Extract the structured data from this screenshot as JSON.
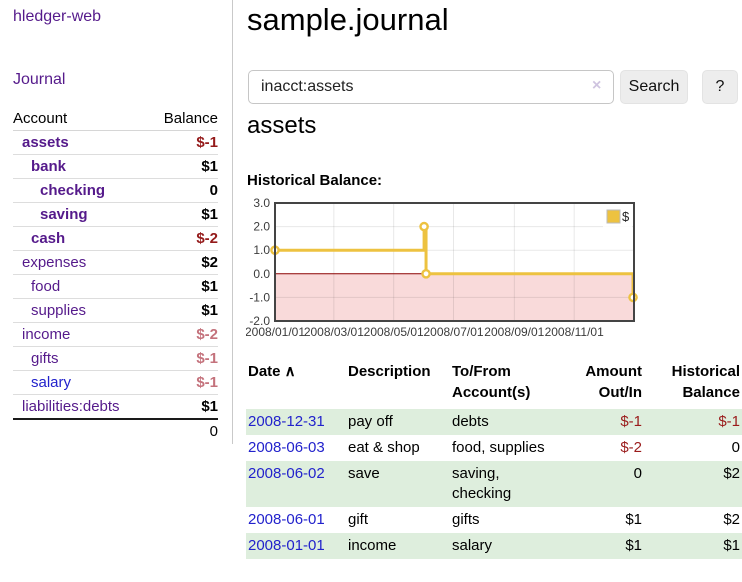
{
  "app": {
    "brand": "hledger-web"
  },
  "sidebar": {
    "nav": {
      "journal_label": "Journal"
    },
    "accounts_table": {
      "headers": {
        "account": "Account",
        "balance": "Balance"
      },
      "rows": [
        {
          "name": "assets",
          "depth": 1,
          "bold": true,
          "link_color": "purple",
          "balance": "$-1",
          "balance_style": "negative"
        },
        {
          "name": "bank",
          "depth": 2,
          "bold": true,
          "link_color": "purple",
          "balance": "$1",
          "balance_style": "normal"
        },
        {
          "name": "checking",
          "depth": 3,
          "bold": true,
          "link_color": "purple",
          "balance": "0",
          "balance_style": "normal"
        },
        {
          "name": "saving",
          "depth": 3,
          "bold": true,
          "link_color": "purple",
          "balance": "$1",
          "balance_style": "normal"
        },
        {
          "name": "cash",
          "depth": 2,
          "bold": true,
          "link_color": "purple",
          "balance": "$-2",
          "balance_style": "negative"
        },
        {
          "name": "expenses",
          "depth": 1,
          "bold": false,
          "link_color": "purple",
          "balance": "$2",
          "balance_style": "normal"
        },
        {
          "name": "food",
          "depth": 2,
          "bold": false,
          "link_color": "purple",
          "balance": "$1",
          "balance_style": "normal"
        },
        {
          "name": "supplies",
          "depth": 2,
          "bold": false,
          "link_color": "purple",
          "balance": "$1",
          "balance_style": "normal"
        },
        {
          "name": "income",
          "depth": 1,
          "bold": false,
          "link_color": "purple",
          "balance": "$-2",
          "balance_style": "negative-muted"
        },
        {
          "name": "gifts",
          "depth": 2,
          "bold": false,
          "link_color": "purple",
          "balance": "$-1",
          "balance_style": "negative-muted"
        },
        {
          "name": "salary",
          "depth": 2,
          "bold": false,
          "link_color": "blue",
          "balance": "$-1",
          "balance_style": "negative-muted"
        },
        {
          "name": "liabilities:debts",
          "depth": 1,
          "bold": false,
          "link_color": "purple",
          "balance": "$1",
          "balance_style": "normal"
        }
      ],
      "total": {
        "balance": "0"
      }
    }
  },
  "header": {
    "title": "sample.journal"
  },
  "search": {
    "value": "inacct:assets",
    "clear_icon": "×",
    "button_label": "Search",
    "help_label": "?"
  },
  "account_page": {
    "heading": "assets",
    "chart_label": "Historical Balance:"
  },
  "chart_data": {
    "type": "line",
    "step": true,
    "series": [
      {
        "name": "$",
        "color": "#edc240",
        "points": [
          {
            "x": "2008-01-01",
            "y": 1
          },
          {
            "x": "2008-06-01",
            "y": 2
          },
          {
            "x": "2008-06-03",
            "y": 0
          },
          {
            "x": "2008-12-31",
            "y": -1
          }
        ]
      }
    ],
    "xlim": [
      "2008-01-01",
      "2009-01-01"
    ],
    "ylim": [
      -2,
      3
    ],
    "x_ticks": [
      {
        "pos": "2008-01-01",
        "label": "2008/01/01"
      },
      {
        "pos": "2008-03-01",
        "label": "2008/03/01"
      },
      {
        "pos": "2008-05-01",
        "label": "2008/05/01"
      },
      {
        "pos": "2008-07-01",
        "label": "2008/07/01"
      },
      {
        "pos": "2008-09-01",
        "label": "2008/09/01"
      },
      {
        "pos": "2008-11-01",
        "label": "2008/11/01"
      }
    ],
    "y_ticks": [
      3.0,
      2.0,
      1.0,
      0.0,
      -1.0,
      -2.0
    ],
    "legend": {
      "position": "top-right",
      "label": "$"
    },
    "grid": true,
    "negative_region_color": "#f9dada",
    "zero_line_color": "#8b0000",
    "border_color": "#444444",
    "gridline_color": "rgba(0,0,0,0.09)",
    "tick_label_color": "#3c3c3c"
  },
  "transactions": {
    "columns": [
      {
        "id": "date",
        "lines": [
          "Date"
        ],
        "align": "left",
        "sort_indicator": "∧"
      },
      {
        "id": "description",
        "lines": [
          "Description"
        ],
        "align": "left"
      },
      {
        "id": "tofrom",
        "lines": [
          "To/From",
          "Account(s)"
        ],
        "align": "left"
      },
      {
        "id": "amount",
        "lines": [
          "Amount",
          "Out/In"
        ],
        "align": "right"
      },
      {
        "id": "balance",
        "lines": [
          "Historical",
          "Balance"
        ],
        "align": "right"
      }
    ],
    "rows": [
      {
        "date": "2008-12-31",
        "description": "pay off",
        "tofrom": "debts",
        "amount": "$-1",
        "balance": "$-1"
      },
      {
        "date": "2008-06-03",
        "description": "eat & shop",
        "tofrom": "food, supplies",
        "amount": "$-2",
        "balance": "0"
      },
      {
        "date": "2008-06-02",
        "description": "save",
        "tofrom": "saving, checking",
        "amount": "0",
        "balance": "$2"
      },
      {
        "date": "2008-06-01",
        "description": "gift",
        "tofrom": "gifts",
        "amount": "$1",
        "balance": "$2"
      },
      {
        "date": "2008-01-01",
        "description": "income",
        "tofrom": "salary",
        "amount": "$1",
        "balance": "$1"
      }
    ]
  },
  "colors": {
    "link_purple": "#551a8b",
    "link_blue": "#2222cc",
    "negative_strong": "#941a1a",
    "negative_muted": "#c4727c",
    "row_stripe_green": "#deeedd",
    "series_gold": "#edc240"
  }
}
